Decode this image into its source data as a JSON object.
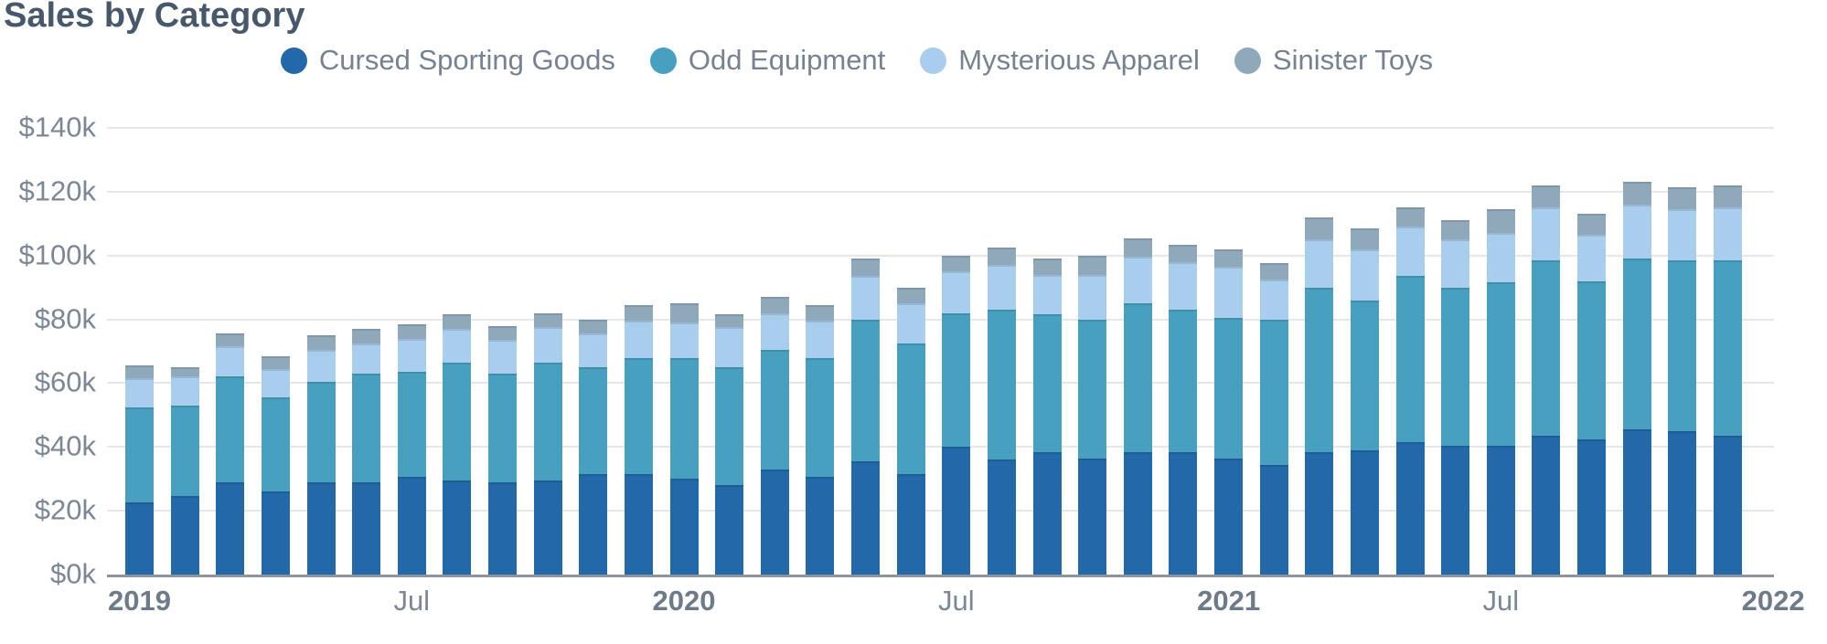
{
  "title": "Sales by Category",
  "legend": {
    "items": [
      "Cursed Sporting Goods",
      "Odd Equipment",
      "Mysterious Apparel",
      "Sinister Toys"
    ]
  },
  "colors": {
    "cursed_sporting_goods": "#2368a9",
    "odd_equipment": "#47a0bf",
    "mysterious_apparel": "#a9cdec",
    "sinister_toys": "#90a9ba",
    "title_text": "#46586a",
    "axis_text": "#7b8795",
    "year_tick_text": "#6d7a89",
    "legend_text": "#76828f",
    "gridline": "#e7e7ea",
    "axis_line": "#8d949c"
  },
  "chart_data": {
    "type": "bar",
    "stacked": true,
    "title": "Sales by Category",
    "xlabel": "",
    "ylabel": "",
    "unit": "thousand USD",
    "ylim": [
      0,
      140
    ],
    "grid": true,
    "legend_position": "top-center",
    "y_ticks": [
      "$0k",
      "$20k",
      "$40k",
      "$60k",
      "$80k",
      "$100k",
      "$120k",
      "$140k"
    ],
    "x_ticks": [
      {
        "at": 0,
        "label": "2019",
        "bold": true
      },
      {
        "at": 6,
        "label": "Jul",
        "bold": false
      },
      {
        "at": 12,
        "label": "2020",
        "bold": true
      },
      {
        "at": 18,
        "label": "Jul",
        "bold": false
      },
      {
        "at": 24,
        "label": "2021",
        "bold": true
      },
      {
        "at": 30,
        "label": "Jul",
        "bold": false
      },
      {
        "at": 36,
        "label": "2022",
        "bold": true
      }
    ],
    "categories": [
      "Jan 2019",
      "Feb 2019",
      "Mar 2019",
      "Apr 2019",
      "May 2019",
      "Jun 2019",
      "Jul 2019",
      "Aug 2019",
      "Sep 2019",
      "Oct 2019",
      "Nov 2019",
      "Dec 2019",
      "Jan 2020",
      "Feb 2020",
      "Mar 2020",
      "Apr 2020",
      "May 2020",
      "Jun 2020",
      "Jul 2020",
      "Aug 2020",
      "Sep 2020",
      "Oct 2020",
      "Nov 2020",
      "Dec 2020",
      "Jan 2021",
      "Feb 2021",
      "Mar 2021",
      "Apr 2021",
      "May 2021",
      "Jun 2021",
      "Jul 2021",
      "Aug 2021",
      "Sep 2021",
      "Oct 2021",
      "Nov 2021",
      "Dec 2021"
    ],
    "series": [
      {
        "name": "Cursed Sporting Goods",
        "color": "#2368a9",
        "values": [
          22.5,
          24.5,
          29,
          26,
          29,
          29,
          30.5,
          29.5,
          29,
          29.5,
          31.5,
          31.5,
          30,
          28,
          33,
          30.5,
          35.5,
          31.5,
          40,
          36,
          38.5,
          36.5,
          38.5,
          38.5,
          36.5,
          34.5,
          38.5,
          39,
          41.5,
          40.5,
          40.5,
          43.5,
          42.5,
          45.5,
          45,
          43.5
        ]
      },
      {
        "name": "Odd Equipment",
        "color": "#47a0bf",
        "values": [
          30,
          28.5,
          33,
          29.5,
          31.5,
          34,
          33,
          37,
          34,
          37,
          33.5,
          36.5,
          38,
          37,
          37.5,
          37.5,
          44.5,
          41,
          42,
          47,
          43,
          43.5,
          46.5,
          44.5,
          44,
          45.5,
          51.5,
          47,
          52,
          49.5,
          51,
          55,
          49.5,
          53.5,
          53.5,
          55
        ]
      },
      {
        "name": "Mysterious Apparel",
        "color": "#a9cdec",
        "values": [
          9,
          9,
          9.5,
          9,
          10,
          9.5,
          10.5,
          10.5,
          10.5,
          11,
          10.5,
          11.5,
          11,
          12.5,
          11.5,
          11.5,
          13.5,
          12.5,
          13,
          14,
          12.5,
          14,
          14.5,
          15,
          16,
          12.5,
          15,
          16,
          15.5,
          15,
          15.5,
          16.5,
          14.5,
          17,
          16,
          16.5
        ]
      },
      {
        "name": "Sinister Toys",
        "color": "#90a9ba",
        "values": [
          4,
          3,
          4,
          4,
          4.5,
          4.5,
          4.5,
          4.5,
          4.5,
          4.5,
          4.5,
          5,
          6,
          4,
          5,
          5,
          5.5,
          5,
          5,
          5.5,
          5,
          6,
          6,
          5.5,
          5.5,
          5,
          7,
          6.5,
          6,
          6,
          7.5,
          7,
          6.5,
          7,
          7,
          7
        ]
      }
    ]
  },
  "geometry_note": "stacked monthly bars Jan 2019 - Dec 2021"
}
